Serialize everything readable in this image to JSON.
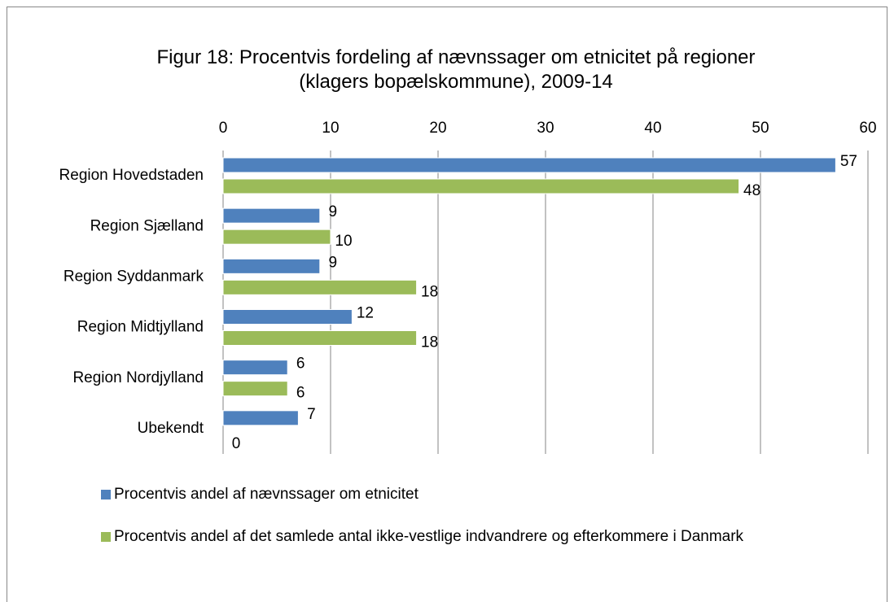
{
  "chart_data": {
    "type": "barh",
    "title": "Figur 18: Procentvis fordeling af nævnssager om etnicitet på regioner (klagers bopælskommune), 2009-14",
    "categories": [
      "Region Hovedstaden",
      "Region Sjælland",
      "Region Syddanmark",
      "Region Midtjylland",
      "Region Nordjylland",
      "Ubekendt"
    ],
    "series": [
      {
        "name": "Procentvis andel af nævnssager om etnicitet",
        "color": "#4f81bd",
        "values": [
          57,
          9,
          9,
          12,
          6,
          7
        ]
      },
      {
        "name": "Procentvis andel af det samlede antal ikke-vestlige indvandrere og efterkommere i Danmark",
        "color": "#9bbb59",
        "values": [
          48,
          10,
          18,
          18,
          6,
          0
        ]
      }
    ],
    "xlim": [
      0,
      60
    ],
    "xticks": [
      0,
      10,
      20,
      30,
      40,
      50,
      60
    ],
    "grid": true,
    "legend": "bottom"
  }
}
